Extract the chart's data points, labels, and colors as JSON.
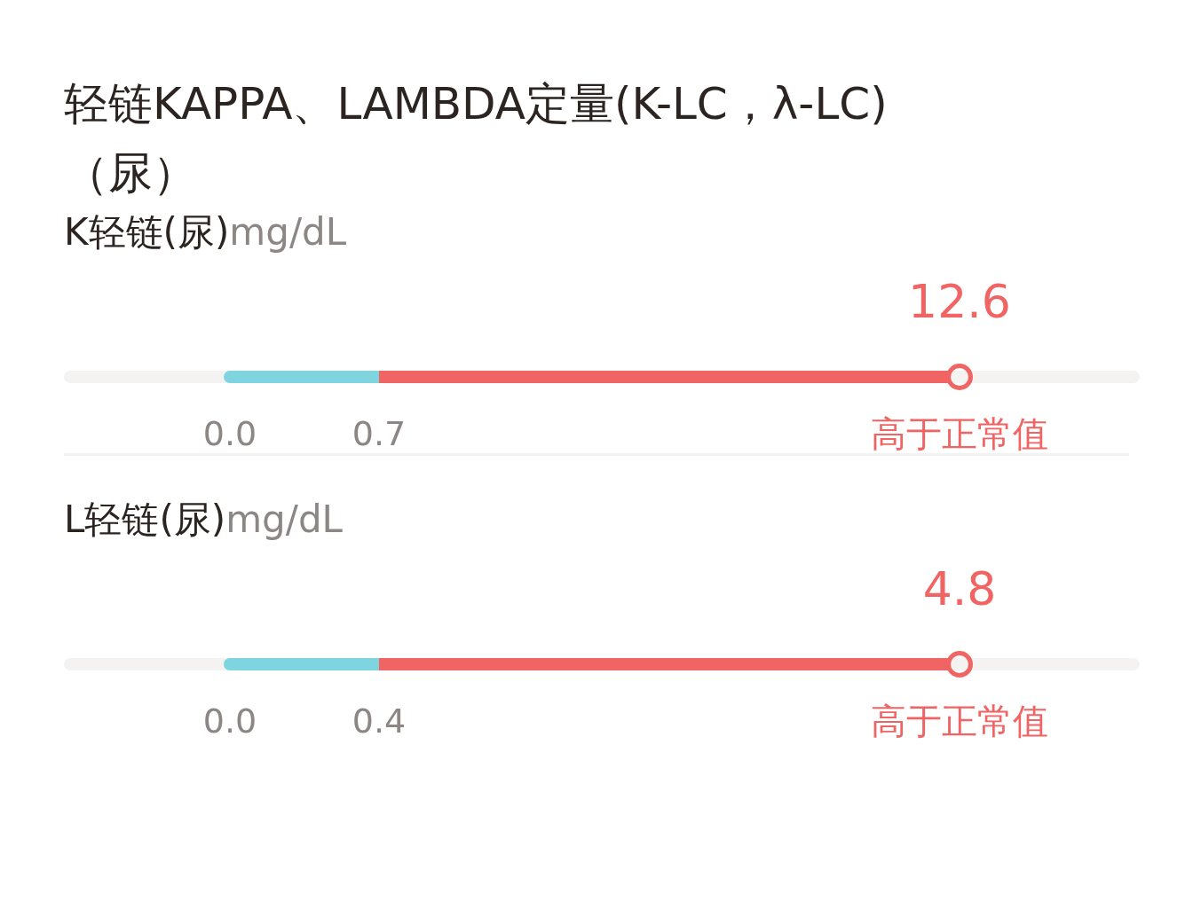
{
  "chart_data": [
    {
      "type": "other",
      "title": "轻链KAPPA、LAMBDA定量(K-LC，λ-LC)（尿）",
      "subtitle": "K轻链(尿)",
      "xlabel": "mg/dL",
      "values": [
        12.6
      ],
      "color": "#f06464",
      "data_labels": true,
      "annotations": [
        "0.0",
        "0.7",
        "高于正常值"
      ]
    },
    {
      "type": "other",
      "title": "L轻链(尿)",
      "xlabel": "mg/dL",
      "values": [
        4.8
      ],
      "color": "#f06464",
      "data_labels": true,
      "annotations": [
        "0.0",
        "0.4",
        "高于正常值"
      ]
    }
  ]
}
